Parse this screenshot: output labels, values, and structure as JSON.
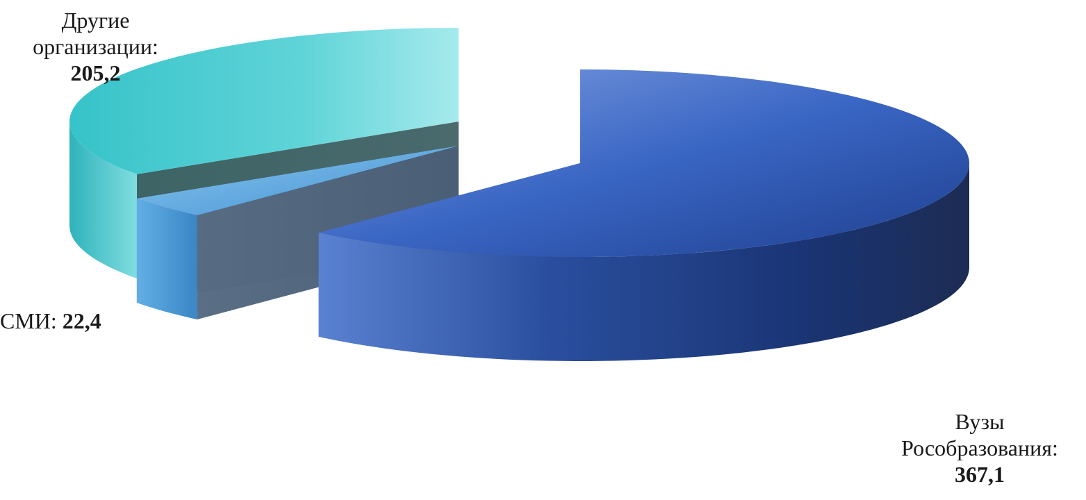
{
  "chart_data": {
    "type": "pie",
    "variant": "3d-exploded",
    "title": "",
    "slices": [
      {
        "name": "Вузы Рособразования",
        "value": 367.1,
        "label_line1": "Вузы",
        "label_line2": "Рособразования:",
        "value_text": "367,1",
        "color": "#2f5fb8"
      },
      {
        "name": "СМИ",
        "value": 22.4,
        "label_line1": "СМИ:",
        "value_text": "22,4",
        "color": "#4c9fdc"
      },
      {
        "name": "Другие организации",
        "value": 205.2,
        "label_line1": "Другие",
        "label_line2": "организации:",
        "value_text": "205,2",
        "color": "#3cc6cc"
      }
    ],
    "legend": "none",
    "data_labels": "outside"
  }
}
